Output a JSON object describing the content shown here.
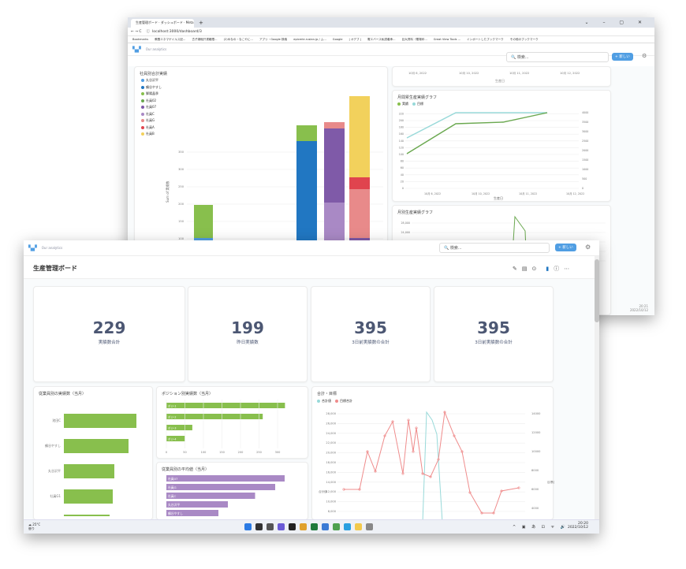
{
  "back_window": {
    "tab_title": "生産管理ボード · ダッシュボード · Meta",
    "url": "localhost:3000/dashboard/3",
    "bookmarks": [
      "Bookmarks",
      "教養エネマゲイルス記...",
      "古子湖稲只書綴根...",
      "(2)ゆなの・なこやに...",
      "アプリ・Google 検索",
      "epicerie.ruslan.jp / ム...",
      "Google",
      "| オデブ |",
      "電エバース私説著承...",
      "巨大資料（電場印...",
      "Great View Tools ...",
      "インポートしたブックマーク",
      "その他のブックマーク"
    ],
    "breadcrumb": "Our analytics",
    "search_placeholder": "検索...",
    "new_button": "+ 新しい",
    "stack_chart": {
      "title": "社員別合計実績",
      "legend": [
        "丸谷沢平",
        "鶴谷やすし",
        "脚陽晶季",
        "社員02",
        "社員07",
        "社員C",
        "社員G",
        "社員A",
        "社員B"
      ],
      "legend_colors": [
        "#509ee3",
        "#2177c2",
        "#88bf4d",
        "#6aa84f",
        "#7f5aa8",
        "#a989c5",
        "#e88a8a",
        "#e0444e",
        "#f2d15c"
      ],
      "y_ticks": [
        "0",
        "50",
        "100",
        "150",
        "200",
        "250",
        "300",
        "350"
      ],
      "y_label": "Sum of 実績数"
    },
    "top_axis": {
      "ticks": [
        "10月 6, 2022",
        "10月 10, 2022",
        "10月 11, 2022",
        "10月 12, 2022"
      ],
      "label": "生産日"
    },
    "line_chart": {
      "title": "月間累生産実績グラフ",
      "legend": [
        "実績",
        "目標"
      ],
      "left_ticks": [
        "0",
        "20",
        "40",
        "60",
        "80",
        "100",
        "120",
        "140",
        "160",
        "180",
        "200",
        "220"
      ],
      "right_ticks": [
        "0",
        "500",
        "1000",
        "1500",
        "2000",
        "2500",
        "3000",
        "3500",
        "4000"
      ],
      "x_ticks": [
        "10月 6, 2022",
        "10月 10, 2022",
        "10月 11, 2022",
        "10月 12, 2022"
      ],
      "x_label": "生産日",
      "left_label": "実績数累計",
      "right_label": "目標数累計"
    },
    "line_chart2": {
      "title": "月別生産実績グラフ",
      "y_ticks": [
        "28,000",
        "24,000",
        "20,000",
        "16,000",
        "12,000"
      ]
    },
    "clock": {
      "time": "20:21",
      "date": "2022/10/12"
    }
  },
  "front_window": {
    "breadcrumb": "Our analytics",
    "search_placeholder": "検索...",
    "new_button": "+ 新しい",
    "title": "生産管理ボード",
    "kpis": [
      {
        "value": "229",
        "label": "実績数合計"
      },
      {
        "value": "199",
        "label": "昨日実績数"
      },
      {
        "value": "395",
        "label": "3日前実績数の合計"
      },
      {
        "value": "395",
        "label": "3日前実績数の合計"
      }
    ],
    "card1": {
      "title": "従業員別の実績数（当月）",
      "labels": [
        "池田C",
        "鶴谷やすし",
        "丸谷沢平",
        "社員G1",
        ""
      ]
    },
    "card2": {
      "title": "ポジション別実績数（当月）",
      "labels": [
        "ポジ-1",
        "ポジ-2",
        "ポジ-3",
        "ポジ-4"
      ],
      "values": [
        320,
        260,
        70,
        50
      ],
      "ticks": [
        "0",
        "50",
        "100",
        "150",
        "200",
        "250",
        "300"
      ]
    },
    "card3": {
      "title": "従業員別の平均値（当月）",
      "labels": [
        "社員07",
        "社員G",
        "社員C",
        "丸谷沢平",
        "鶴谷やすし"
      ],
      "values": [
        100,
        92,
        75,
        52,
        44
      ]
    },
    "card4": {
      "title": "合計・目標",
      "legend": [
        "合計値",
        "目標合計"
      ],
      "left_ticks": [
        "28,000",
        "26,000",
        "24,000",
        "22,000",
        "20,000",
        "18,000",
        "16,000",
        "14,000",
        "12,000",
        "10,000",
        "8,000",
        "6,000"
      ],
      "right_ticks": [
        "14000",
        "12000",
        "10000",
        "8000",
        "6000",
        "4000"
      ],
      "left_label": "合計値",
      "right_label": "目標合計"
    },
    "taskbar": {
      "weather": "曇り",
      "temp": "25°C",
      "time": "20:20",
      "date": "2022/10/12"
    }
  },
  "colors": {
    "accent": "#509ee3",
    "green": "#88bf4d",
    "purple": "#a989c5",
    "blue": "#2177c2"
  }
}
